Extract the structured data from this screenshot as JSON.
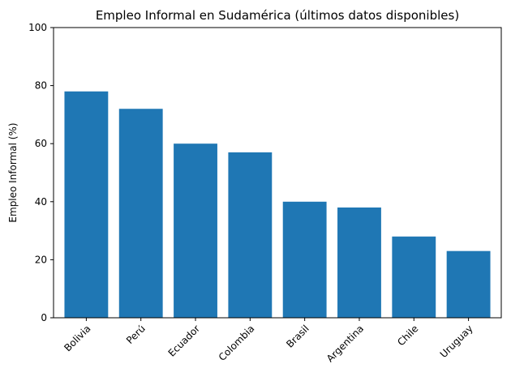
{
  "chart_data": {
    "type": "bar",
    "title": "Empleo Informal en Sudamérica (últimos datos disponibles)",
    "xlabel": "",
    "ylabel": "Empleo Informal (%)",
    "categories": [
      "Bolivia",
      "Perú",
      "Ecuador",
      "Colombia",
      "Brasil",
      "Argentina",
      "Chile",
      "Uruguay"
    ],
    "values": [
      78,
      72,
      60,
      57,
      40,
      38,
      28,
      23
    ],
    "ylim": [
      0,
      100
    ],
    "yticks": [
      0,
      20,
      40,
      60,
      80,
      100
    ],
    "grid": false,
    "legend": "none",
    "bar_color": "#1f77b4"
  }
}
